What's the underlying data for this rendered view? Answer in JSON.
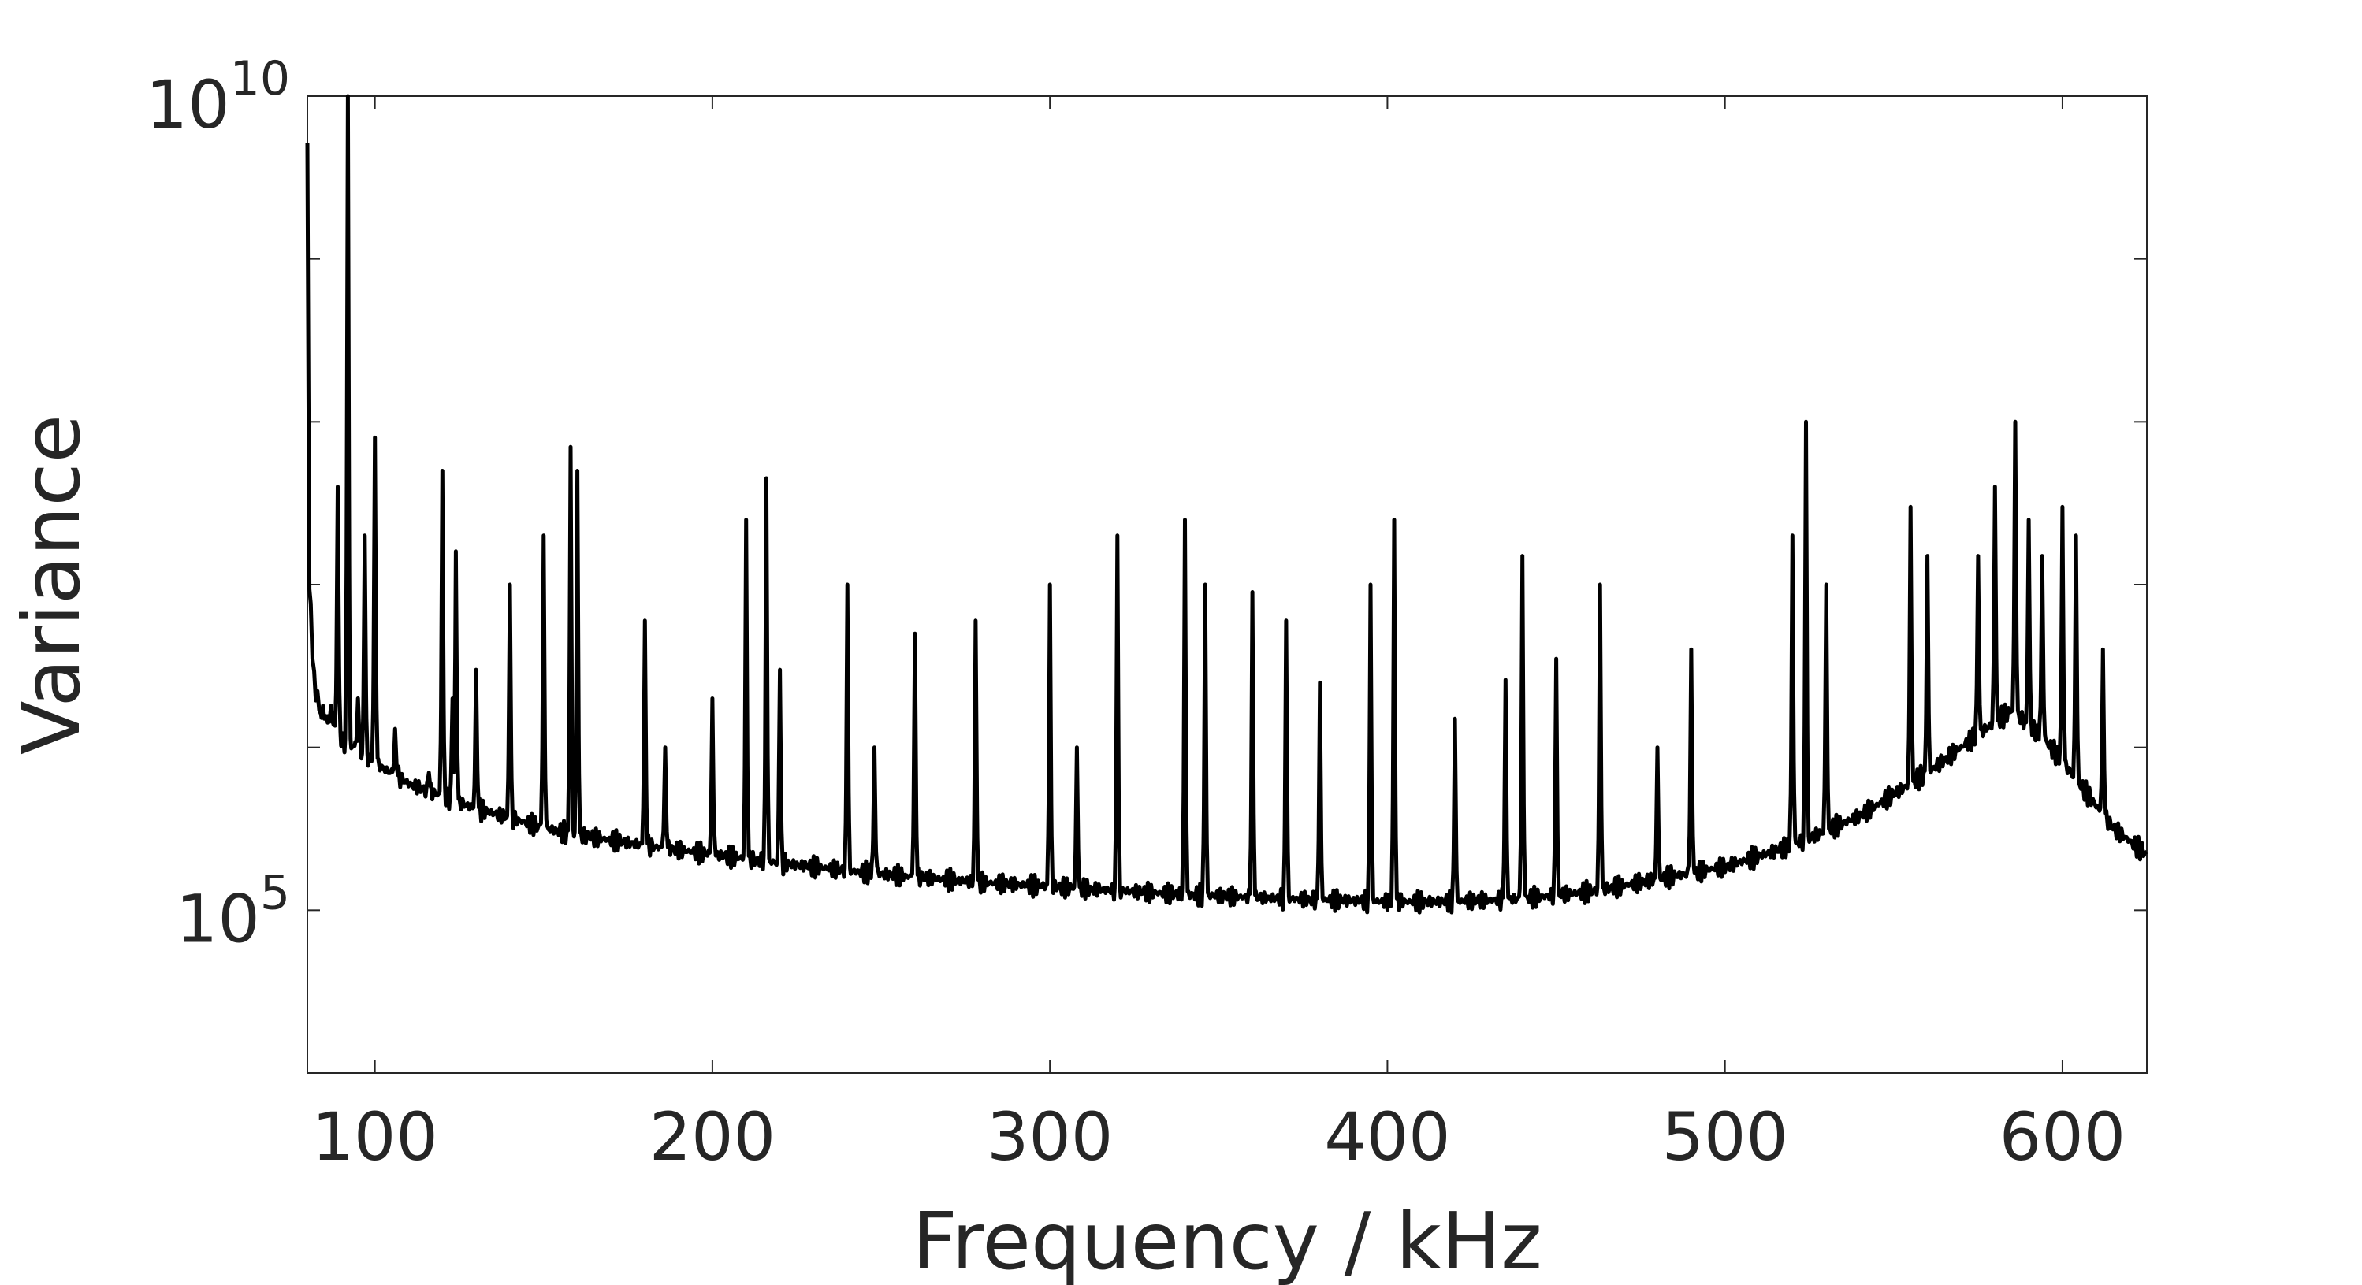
{
  "chart_data": {
    "type": "line",
    "title": "",
    "xlabel": "Frequency / kHz",
    "ylabel": "Variance",
    "x_scale": "linear",
    "y_scale": "log",
    "xlim": [
      80,
      625
    ],
    "ylim": [
      10000,
      10000000000
    ],
    "x_ticks": [
      {
        "value": 100,
        "label": "100"
      },
      {
        "value": 200,
        "label": "200"
      },
      {
        "value": 300,
        "label": "300"
      },
      {
        "value": 400,
        "label": "400"
      },
      {
        "value": 500,
        "label": "500"
      },
      {
        "value": 600,
        "label": "600"
      }
    ],
    "y_ticks_labeled": [
      {
        "value": 100000,
        "base": "10",
        "exp": "5"
      },
      {
        "value": 10000000000,
        "base": "10",
        "exp": "10"
      }
    ],
    "y_minor_ticks": [
      10000000,
      100000000,
      1000000000,
      1000000,
      10000
    ],
    "grid": false,
    "line_color": "#000000",
    "series": [
      {
        "baseline": [
          [
            80,
            5000000000
          ],
          [
            80.6,
            10000000
          ],
          [
            82,
            2500000
          ],
          [
            84,
            1600000
          ],
          [
            88,
            1300000
          ],
          [
            90,
            1100000
          ],
          [
            94,
            1000000
          ],
          [
            100,
            800000
          ],
          [
            110,
            600000
          ],
          [
            120,
            500000
          ],
          [
            130,
            420000
          ],
          [
            140,
            370000
          ],
          [
            150,
            320000
          ],
          [
            160,
            290000
          ],
          [
            170,
            270000
          ],
          [
            180,
            250000
          ],
          [
            200,
            220000
          ],
          [
            220,
            195000
          ],
          [
            240,
            175000
          ],
          [
            260,
            160000
          ],
          [
            280,
            148000
          ],
          [
            300,
            140000
          ],
          [
            320,
            132000
          ],
          [
            340,
            125000
          ],
          [
            360,
            120000
          ],
          [
            380,
            116000
          ],
          [
            400,
            113000
          ],
          [
            420,
            113000
          ],
          [
            440,
            118000
          ],
          [
            460,
            130000
          ],
          [
            480,
            155000
          ],
          [
            500,
            185000
          ],
          [
            520,
            250000
          ],
          [
            540,
            380000
          ],
          [
            560,
            700000
          ],
          [
            575,
            1200000
          ],
          [
            585,
            1700000
          ],
          [
            595,
            1100000
          ],
          [
            605,
            600000
          ],
          [
            615,
            320000
          ],
          [
            625,
            220000
          ]
        ],
        "peaks": [
          [
            85,
            1500000
          ],
          [
            87,
            1800000
          ],
          [
            89,
            40000000
          ],
          [
            92,
            10000000000
          ],
          [
            95,
            2000000
          ],
          [
            97,
            20000000
          ],
          [
            100,
            80000000
          ],
          [
            106,
            1300000
          ],
          [
            116,
            700000
          ],
          [
            120,
            50000000
          ],
          [
            123,
            2000000
          ],
          [
            124,
            16000000
          ],
          [
            130,
            3000000
          ],
          [
            140,
            10000000
          ],
          [
            150,
            20000000
          ],
          [
            158,
            70000000
          ],
          [
            160,
            50000000
          ],
          [
            180,
            6000000
          ],
          [
            186,
            1000000
          ],
          [
            200,
            2000000
          ],
          [
            210,
            25000000
          ],
          [
            216,
            45000000
          ],
          [
            220,
            3000000
          ],
          [
            240,
            10000000
          ],
          [
            248,
            1000000
          ],
          [
            260,
            5000000
          ],
          [
            278,
            6000000
          ],
          [
            300,
            10000000
          ],
          [
            308,
            1000000
          ],
          [
            320,
            20000000
          ],
          [
            340,
            25000000
          ],
          [
            346,
            10000000
          ],
          [
            360,
            9000000
          ],
          [
            370,
            6000000
          ],
          [
            380,
            2500000
          ],
          [
            395,
            10000000
          ],
          [
            402,
            25000000
          ],
          [
            420,
            1500000
          ],
          [
            435,
            2600000
          ],
          [
            440,
            15000000
          ],
          [
            450,
            3500000
          ],
          [
            463,
            10000000
          ],
          [
            480,
            1000000
          ],
          [
            490,
            4000000
          ],
          [
            520,
            20000000
          ],
          [
            524,
            100000000
          ],
          [
            530,
            10000000
          ],
          [
            555,
            30000000
          ],
          [
            560,
            15000000
          ],
          [
            575,
            15000000
          ],
          [
            580,
            40000000
          ],
          [
            586,
            100000000
          ],
          [
            590,
            25000000
          ],
          [
            594,
            15000000
          ],
          [
            600,
            30000000
          ],
          [
            604,
            20000000
          ],
          [
            612,
            4000000
          ]
        ]
      }
    ]
  }
}
